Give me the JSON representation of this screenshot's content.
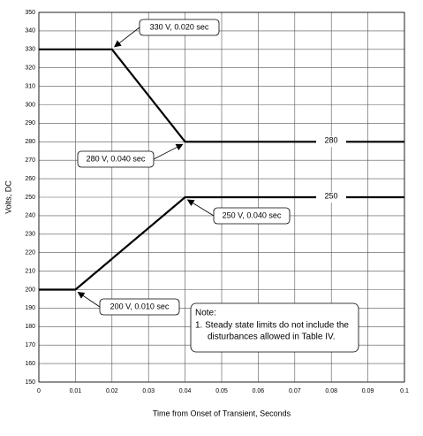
{
  "chart_data": {
    "type": "line",
    "xlabel": "Time from Onset of Transient, Seconds",
    "ylabel": "Volts, DC",
    "xlim": [
      0,
      0.1
    ],
    "xticks": [
      0,
      0.01,
      0.02,
      0.03,
      0.04,
      0.05,
      0.06,
      0.07,
      0.08,
      0.09,
      0.1
    ],
    "ylim": [
      150,
      350
    ],
    "yticks": [
      150,
      160,
      170,
      180,
      190,
      200,
      210,
      220,
      230,
      240,
      250,
      260,
      270,
      280,
      290,
      300,
      310,
      320,
      330,
      340,
      350
    ],
    "grid": true,
    "series": [
      {
        "name": "280",
        "color": "#000000",
        "x": [
          0,
          0.02,
          0.04,
          0.1
        ],
        "values": [
          330,
          330,
          280,
          280
        ]
      },
      {
        "name": "250",
        "color": "#000000",
        "x": [
          0,
          0.01,
          0.04,
          0.1
        ],
        "values": [
          200,
          200,
          250,
          250
        ]
      }
    ],
    "annotations": [
      {
        "text": "330 V, 0.020 sec",
        "x": 0.02,
        "y": 330
      },
      {
        "text": "280 V, 0.040 sec",
        "x": 0.04,
        "y": 280
      },
      {
        "text": "250 V, 0.040 sec",
        "x": 0.04,
        "y": 250
      },
      {
        "text": "200 V, 0.010 sec",
        "x": 0.01,
        "y": 200
      }
    ],
    "note": {
      "title": "Note:",
      "lines": [
        "1. Steady state limits do not include the",
        "disturbances allowed in Table IV."
      ]
    }
  }
}
